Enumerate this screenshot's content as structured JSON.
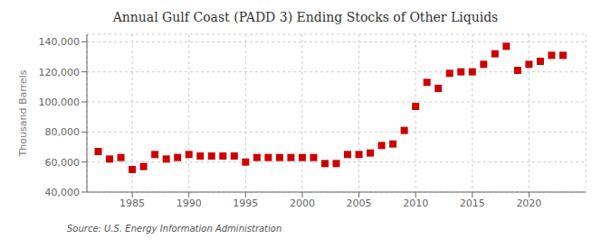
{
  "chart_data": {
    "type": "scatter",
    "title": "Annual Gulf Coast (PADD 3) Ending Stocks of Other Liquids",
    "ylabel": "Thousand Barrels",
    "annotation": "Source: U.S. Energy Information Administration",
    "x": [
      1982,
      1983,
      1984,
      1985,
      1986,
      1987,
      1988,
      1989,
      1990,
      1991,
      1992,
      1993,
      1994,
      1995,
      1996,
      1997,
      1998,
      1999,
      2000,
      2001,
      2002,
      2003,
      2004,
      2005,
      2006,
      2007,
      2008,
      2009,
      2010,
      2011,
      2012,
      2013,
      2014,
      2015,
      2016,
      2017,
      2018,
      2019,
      2020,
      2021,
      2022,
      2023
    ],
    "values": [
      67000,
      62000,
      63000,
      55000,
      57000,
      65000,
      62000,
      63000,
      65000,
      64000,
      64000,
      64000,
      64000,
      60000,
      63000,
      63000,
      63000,
      63000,
      63000,
      63000,
      59000,
      59000,
      65000,
      65000,
      66000,
      71000,
      72000,
      81000,
      97000,
      113000,
      109000,
      119000,
      120000,
      120000,
      125000,
      132000,
      137000,
      121000,
      125000,
      127000,
      131000,
      131000
    ],
    "color": "#cc0000",
    "marker": "square",
    "xlim": [
      1981,
      2025
    ],
    "xticks": [
      1985,
      1990,
      1995,
      2000,
      2005,
      2010,
      2015,
      2020
    ],
    "ylim": [
      40000,
      145000
    ],
    "yticks": [
      {
        "value": 40000,
        "label": "40,000"
      },
      {
        "value": 60000,
        "label": "60,000"
      },
      {
        "value": 80000,
        "label": "80,000"
      },
      {
        "value": 100000,
        "label": "100,000"
      },
      {
        "value": 120000,
        "label": "120,000"
      },
      {
        "value": 140000,
        "label": "140,000"
      }
    ],
    "grid": true
  }
}
